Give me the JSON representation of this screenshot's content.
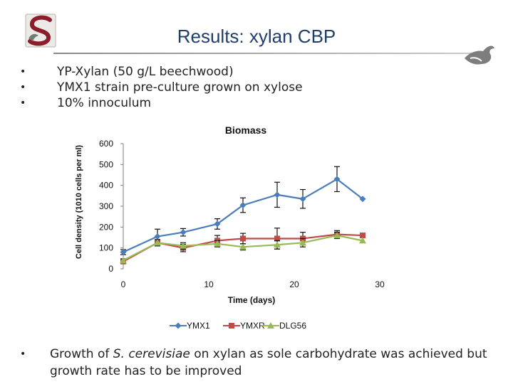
{
  "slide": {
    "title": "Results: xylan CBP",
    "bullets": [
      "YP-Xylan (50 g/L beechwood)",
      "YMX1 strain pre-culture grown on xylose",
      "10% innoculum"
    ],
    "footer": {
      "pre": "Growth of ",
      "italic": "S. cerevisiae",
      "post": " on xylan as sole carbohydrate was achieved but growth rate has to be improved"
    }
  },
  "chart_data": {
    "type": "line",
    "title": "Biomass",
    "xlabel": "Time (days)",
    "ylabel": "Cell density (1010 cells per ml)",
    "xlim": [
      0,
      30
    ],
    "ylim": [
      0,
      600
    ],
    "xticks": [
      "0",
      "10",
      "20",
      "30"
    ],
    "yticks": [
      "0",
      "100",
      "200",
      "300",
      "400",
      "500",
      "600"
    ],
    "legend_position": "bottom",
    "series": [
      {
        "name": "YMX1",
        "color": "#4a7ebb",
        "marker": "diamond",
        "x": [
          0,
          4,
          7,
          11,
          14,
          18,
          21,
          25,
          28
        ],
        "y": [
          80,
          155,
          175,
          215,
          305,
          355,
          335,
          430,
          335
        ],
        "err": [
          12,
          35,
          18,
          25,
          35,
          60,
          45,
          60,
          0
        ]
      },
      {
        "name": "YMXR",
        "color": "#be4b48",
        "marker": "square",
        "x": [
          0,
          4,
          7,
          11,
          14,
          18,
          21,
          25,
          28
        ],
        "y": [
          35,
          125,
          100,
          135,
          145,
          145,
          145,
          165,
          160
        ],
        "err": [
          8,
          15,
          18,
          25,
          25,
          50,
          30,
          18,
          0
        ]
      },
      {
        "name": "DLG56",
        "color": "#98b954",
        "marker": "triangle",
        "x": [
          0,
          4,
          7,
          11,
          14,
          18,
          21,
          25,
          28
        ],
        "y": [
          40,
          125,
          110,
          120,
          105,
          115,
          125,
          160,
          135
        ],
        "err": [
          8,
          15,
          15,
          15,
          15,
          20,
          20,
          15,
          0
        ]
      }
    ]
  },
  "colors": {
    "title": "#1f3e6b",
    "rule": "#9a9a9a"
  },
  "icons": {
    "logo": "university-s-logo",
    "bird": "bird-emblem-icon"
  }
}
